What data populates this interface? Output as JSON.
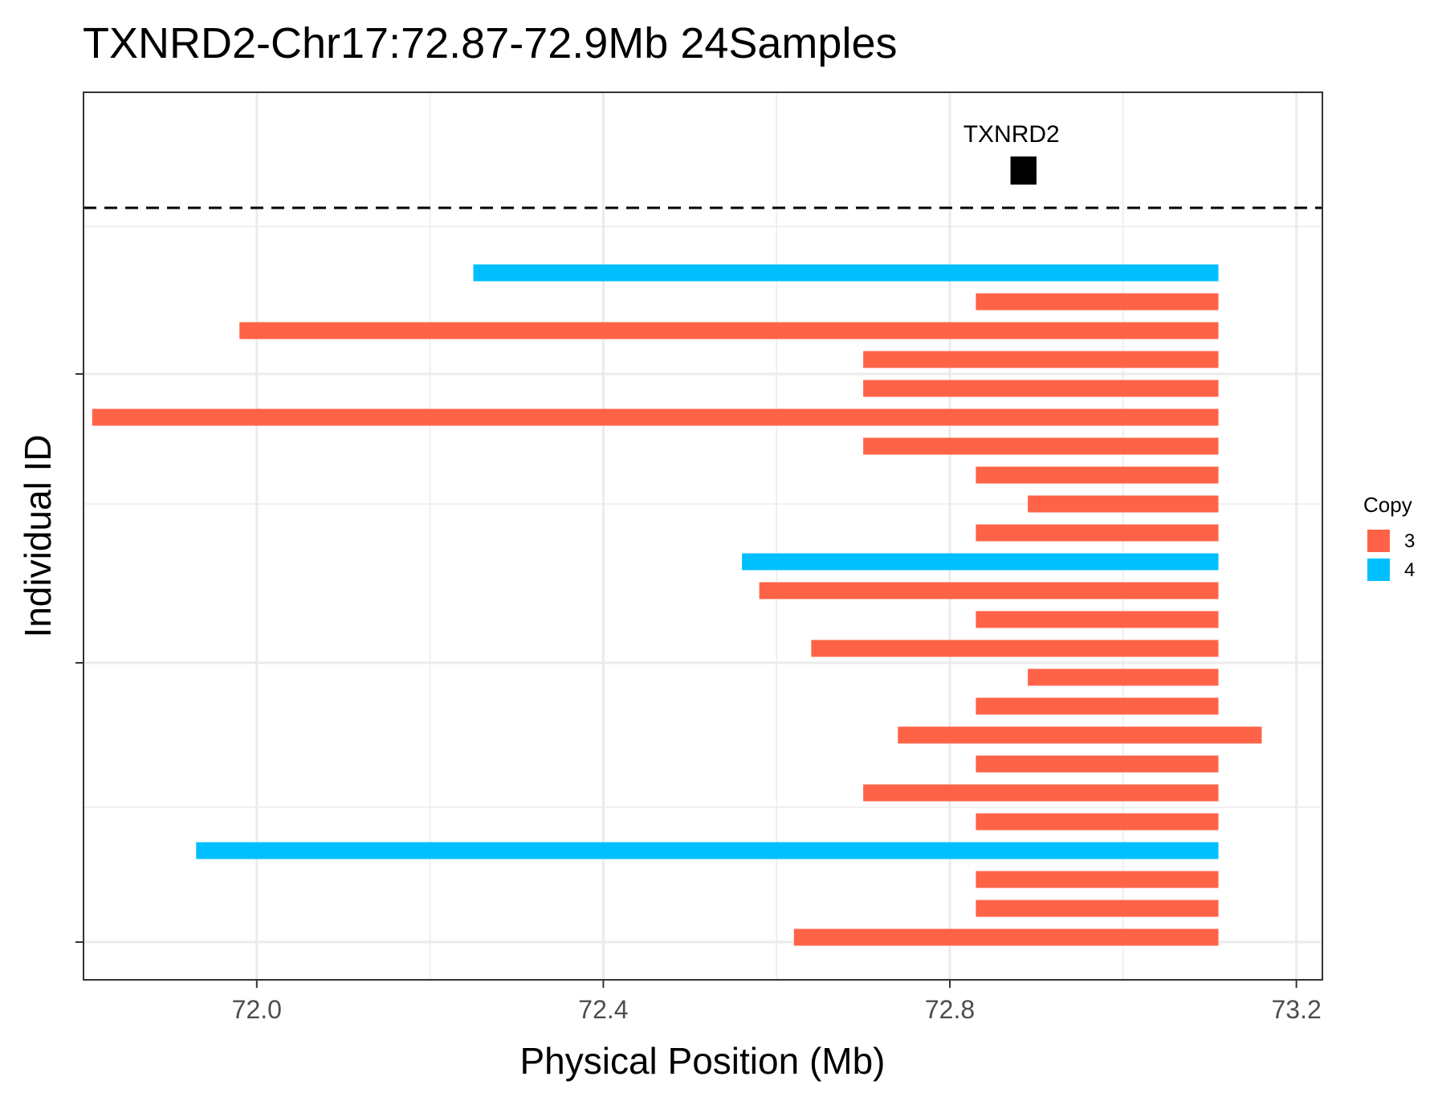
{
  "chart_data": {
    "type": "bar",
    "orientation": "horizontal-segments",
    "title": "TXNRD2-Chr17:72.87-72.9Mb 24Samples",
    "xlabel": "Physical Position (Mb)",
    "ylabel": "Individual ID",
    "xlim": [
      71.8,
      73.23
    ],
    "x_ticks": [
      "72.0",
      "72.4",
      "72.8",
      "73.2"
    ],
    "x_tick_values": [
      72.0,
      72.4,
      72.8,
      73.2
    ],
    "grid": true,
    "gene": {
      "name": "TXNRD2",
      "start": 72.87,
      "end": 72.9
    },
    "legend": {
      "title": "Copy",
      "placement": "right",
      "entries": [
        {
          "label": "3",
          "color": "#FF6347"
        },
        {
          "label": "4",
          "color": "#00BFFF"
        }
      ]
    },
    "segments": [
      {
        "start": 72.25,
        "end": 73.11,
        "copy": "4"
      },
      {
        "start": 72.83,
        "end": 73.11,
        "copy": "3"
      },
      {
        "start": 71.98,
        "end": 73.11,
        "copy": "3"
      },
      {
        "start": 72.7,
        "end": 73.11,
        "copy": "3"
      },
      {
        "start": 72.7,
        "end": 73.11,
        "copy": "3"
      },
      {
        "start": 71.81,
        "end": 73.11,
        "copy": "3"
      },
      {
        "start": 72.7,
        "end": 73.11,
        "copy": "3"
      },
      {
        "start": 72.83,
        "end": 73.11,
        "copy": "3"
      },
      {
        "start": 72.89,
        "end": 73.11,
        "copy": "3"
      },
      {
        "start": 72.83,
        "end": 73.11,
        "copy": "3"
      },
      {
        "start": 72.56,
        "end": 73.11,
        "copy": "4"
      },
      {
        "start": 72.58,
        "end": 73.11,
        "copy": "3"
      },
      {
        "start": 72.83,
        "end": 73.11,
        "copy": "3"
      },
      {
        "start": 72.64,
        "end": 73.11,
        "copy": "3"
      },
      {
        "start": 72.89,
        "end": 73.11,
        "copy": "3"
      },
      {
        "start": 72.83,
        "end": 73.11,
        "copy": "3"
      },
      {
        "start": 72.74,
        "end": 73.16,
        "copy": "3"
      },
      {
        "start": 72.83,
        "end": 73.11,
        "copy": "3"
      },
      {
        "start": 72.7,
        "end": 73.11,
        "copy": "3"
      },
      {
        "start": 72.83,
        "end": 73.11,
        "copy": "3"
      },
      {
        "start": 71.93,
        "end": 73.11,
        "copy": "4"
      },
      {
        "start": 72.83,
        "end": 73.11,
        "copy": "3"
      },
      {
        "start": 72.83,
        "end": 73.11,
        "copy": "3"
      },
      {
        "start": 72.62,
        "end": 73.11,
        "copy": "3"
      }
    ]
  }
}
